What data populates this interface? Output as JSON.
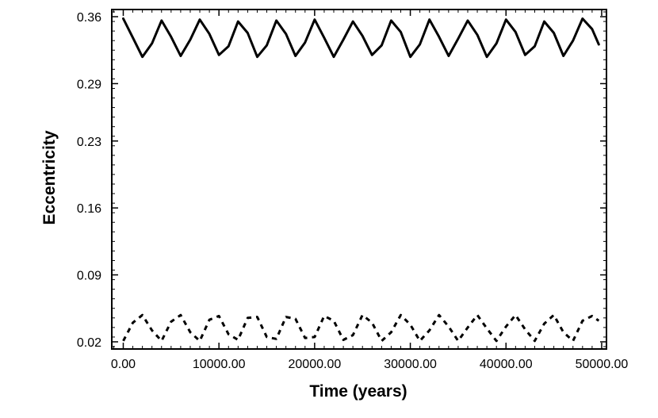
{
  "chart_data": {
    "type": "line",
    "title": "",
    "xlabel": "Time (years)",
    "ylabel": "Eccentricity",
    "xlim": [
      -1200,
      50500
    ],
    "ylim": [
      0.0125,
      0.3675
    ],
    "x_ticks": [
      0,
      10000,
      20000,
      30000,
      40000,
      50000
    ],
    "x_tick_labels": [
      "0.00",
      "10000.00",
      "20000.00",
      "30000.00",
      "40000.00",
      "50000.00"
    ],
    "y_ticks": [
      0.02,
      0.09,
      0.16,
      0.23,
      0.29,
      0.36
    ],
    "y_tick_labels": [
      "0.02",
      "0.09",
      "0.16",
      "0.23",
      "0.29",
      "0.36"
    ],
    "grid": false,
    "legend": "none",
    "line_color": "#000000",
    "series": [
      {
        "style": "solid",
        "x": [
          0,
          1000,
          2000,
          3000,
          4000,
          5000,
          6000,
          7000,
          8000,
          9000,
          10000,
          11000,
          12000,
          13000,
          14000,
          15000,
          16000,
          17000,
          18000,
          19000,
          20000,
          21000,
          22000,
          23000,
          24000,
          25000,
          26000,
          27000,
          28000,
          29000,
          30000,
          31000,
          32000,
          33000,
          34000,
          35000,
          36000,
          37000,
          38000,
          39000,
          40000,
          41000,
          42000,
          43000,
          44000,
          45000,
          46000,
          47000,
          48000,
          49000,
          49700
        ],
        "y": [
          0.358,
          0.338,
          0.318,
          0.332,
          0.356,
          0.339,
          0.319,
          0.336,
          0.357,
          0.342,
          0.32,
          0.329,
          0.355,
          0.343,
          0.318,
          0.33,
          0.356,
          0.342,
          0.319,
          0.333,
          0.357,
          0.338,
          0.318,
          0.336,
          0.355,
          0.34,
          0.32,
          0.33,
          0.356,
          0.344,
          0.318,
          0.331,
          0.357,
          0.339,
          0.319,
          0.337,
          0.356,
          0.341,
          0.318,
          0.332,
          0.357,
          0.344,
          0.32,
          0.329,
          0.355,
          0.343,
          0.319,
          0.335,
          0.358,
          0.347,
          0.331
        ]
      },
      {
        "style": "dashed",
        "x": [
          0,
          1000,
          2000,
          3000,
          4000,
          5000,
          6000,
          7000,
          8000,
          9000,
          10000,
          11000,
          12000,
          13000,
          14000,
          15000,
          16000,
          17000,
          18000,
          19000,
          20000,
          21000,
          22000,
          23000,
          24000,
          25000,
          26000,
          27000,
          28000,
          29000,
          30000,
          31000,
          32000,
          33000,
          34000,
          35000,
          36000,
          37000,
          38000,
          39000,
          40000,
          41000,
          42000,
          43000,
          44000,
          45000,
          46000,
          47000,
          48000,
          49000,
          49700
        ],
        "y": [
          0.021,
          0.04,
          0.048,
          0.032,
          0.021,
          0.041,
          0.048,
          0.03,
          0.021,
          0.043,
          0.047,
          0.028,
          0.022,
          0.045,
          0.046,
          0.025,
          0.023,
          0.046,
          0.044,
          0.024,
          0.025,
          0.047,
          0.042,
          0.022,
          0.027,
          0.048,
          0.04,
          0.021,
          0.03,
          0.048,
          0.038,
          0.021,
          0.032,
          0.048,
          0.036,
          0.021,
          0.035,
          0.048,
          0.034,
          0.021,
          0.036,
          0.048,
          0.033,
          0.021,
          0.039,
          0.048,
          0.03,
          0.021,
          0.042,
          0.047,
          0.042
        ]
      }
    ]
  }
}
